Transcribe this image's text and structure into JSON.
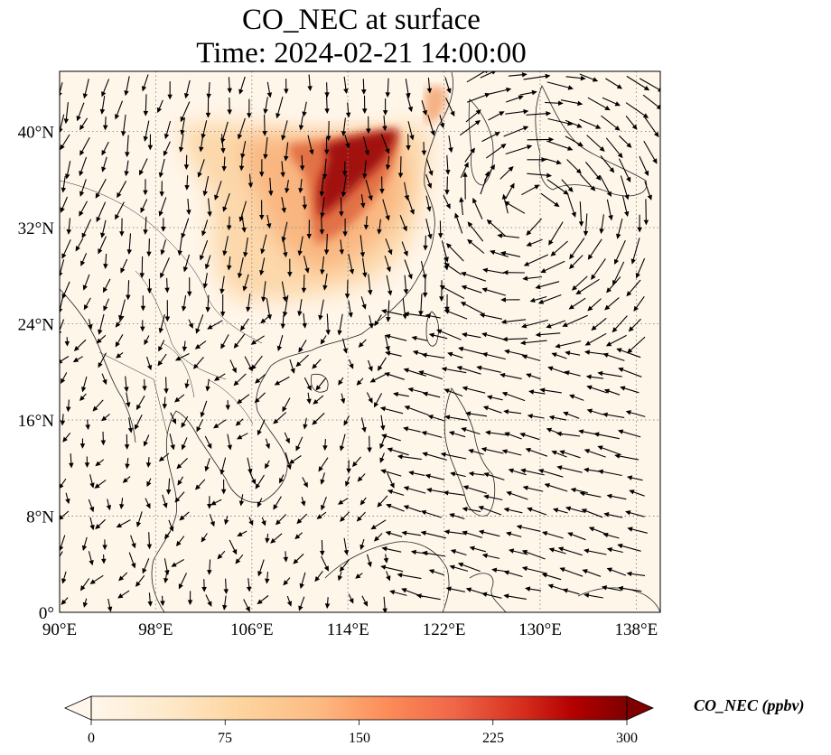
{
  "title": {
    "line1": "CO_NEC at surface",
    "line2": "Time: 2024-02-21 14:00:00"
  },
  "map": {
    "lon_range": [
      90,
      140
    ],
    "lat_range": [
      0,
      45
    ],
    "lon_ticks": [
      "90°E",
      "98°E",
      "106°E",
      "114°E",
      "122°E",
      "130°E",
      "138°E"
    ],
    "lat_ticks": [
      "0°",
      "8°N",
      "16°N",
      "24°N",
      "32°N",
      "40°N"
    ],
    "lon_tick_values": [
      90,
      98,
      106,
      114,
      122,
      130,
      138
    ],
    "lat_tick_values": [
      0,
      8,
      16,
      24,
      32,
      40
    ],
    "gridlines": "dotted",
    "field": "CO_NEC concentration with surface wind vectors"
  },
  "colorbar": {
    "label": "CO_NEC (ppbv)",
    "ticks": [
      "0",
      "75",
      "150",
      "225",
      "300"
    ],
    "tick_values": [
      0,
      75,
      150,
      225,
      300
    ],
    "range": [
      0,
      300
    ],
    "extend": "both",
    "colormap": "OrRd",
    "colors": [
      "#fff7ec",
      "#fee8c8",
      "#fdd49e",
      "#fdbb84",
      "#fc8d59",
      "#ef6548",
      "#d7301f",
      "#b30000",
      "#7f0000"
    ]
  },
  "colors": {
    "background": "#fff6ea",
    "coast": "#222222",
    "arrow": "#000000",
    "grid": "#888888"
  }
}
